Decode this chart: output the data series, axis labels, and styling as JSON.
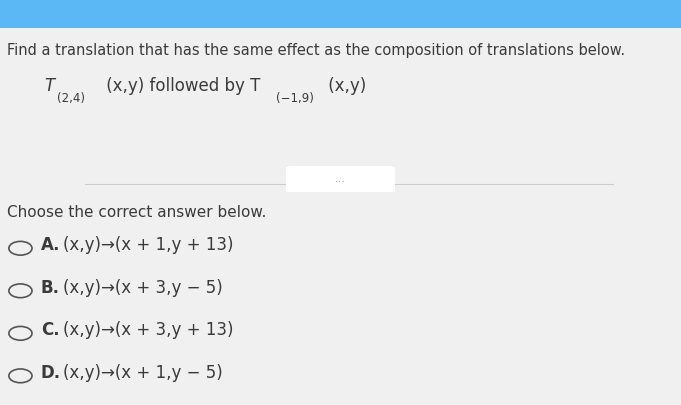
{
  "bg_color_top": "#5bb8f5",
  "bg_color_main": "#f0f0f0",
  "title_text": "Find a translation that has the same effect as the composition of translations below.",
  "divider_dots": "...",
  "prompt": "Choose the correct answer below.",
  "options": [
    {
      "label": "A.",
      "text": "(x,y)→(x + 1,y + 13)"
    },
    {
      "label": "B.",
      "text": "(x,y)→(x + 3,y − 5)"
    },
    {
      "label": "C.",
      "text": "(x,y)→(x + 3,y + 13)"
    },
    {
      "label": "D.",
      "text": "(x,y)→(x + 1,y − 5)"
    }
  ],
  "text_color": "#3a3a3a",
  "title_fontsize": 10.5,
  "problem_fontsize": 12,
  "option_fontsize": 12,
  "prompt_fontsize": 11,
  "sub_fontsize": 8.5
}
